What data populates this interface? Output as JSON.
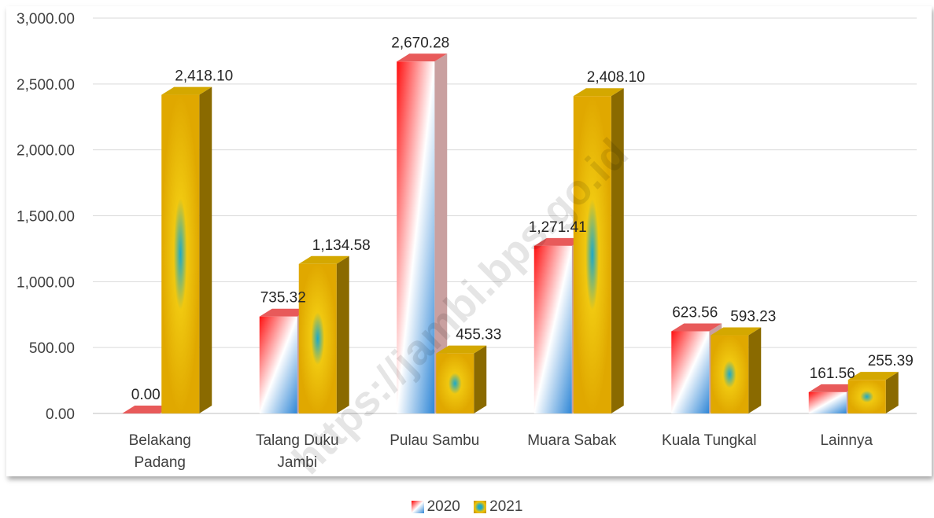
{
  "chart_data": {
    "type": "bar",
    "title": "",
    "xlabel": "",
    "ylabel": "",
    "ylim": [
      0,
      3000
    ],
    "yticks": [
      "0.00",
      "500.00",
      "1,000.00",
      "1,500.00",
      "2,000.00",
      "2,500.00",
      "3,000.00"
    ],
    "grid": true,
    "legend_position": "bottom",
    "categories": [
      [
        "Belakang",
        "Padang"
      ],
      [
        "Talang Duku",
        "Jambi"
      ],
      [
        "Pulau Sambu"
      ],
      [
        "Muara Sabak"
      ],
      [
        "Kuala Tungkal"
      ],
      [
        "Lainnya"
      ]
    ],
    "series": [
      {
        "name": "2020",
        "values": [
          0.0,
          735.32,
          2670.28,
          1271.41,
          623.56,
          161.56
        ],
        "labels": [
          "0.00",
          "735.32",
          "2,670.28",
          "1,271.41",
          "623.56",
          "161.56"
        ]
      },
      {
        "name": "2021",
        "values": [
          2418.1,
          1134.58,
          455.33,
          2408.1,
          593.23,
          255.39
        ],
        "labels": [
          "2,418.10",
          "1,134.58",
          "455.33",
          "2,408.10",
          "593.23",
          "255.39"
        ]
      }
    ]
  },
  "watermark": "https://jambi.bps.go.id",
  "colors": {
    "s2020_red": "#ff0000",
    "s2020_blue": "#2e86d6",
    "s2021_gold": "#f3c300",
    "s2021_teal": "#1ca9c9",
    "s2021_dark": "#8a6a00",
    "grid": "#d9d9d9",
    "axis": "#bfbfbf"
  }
}
